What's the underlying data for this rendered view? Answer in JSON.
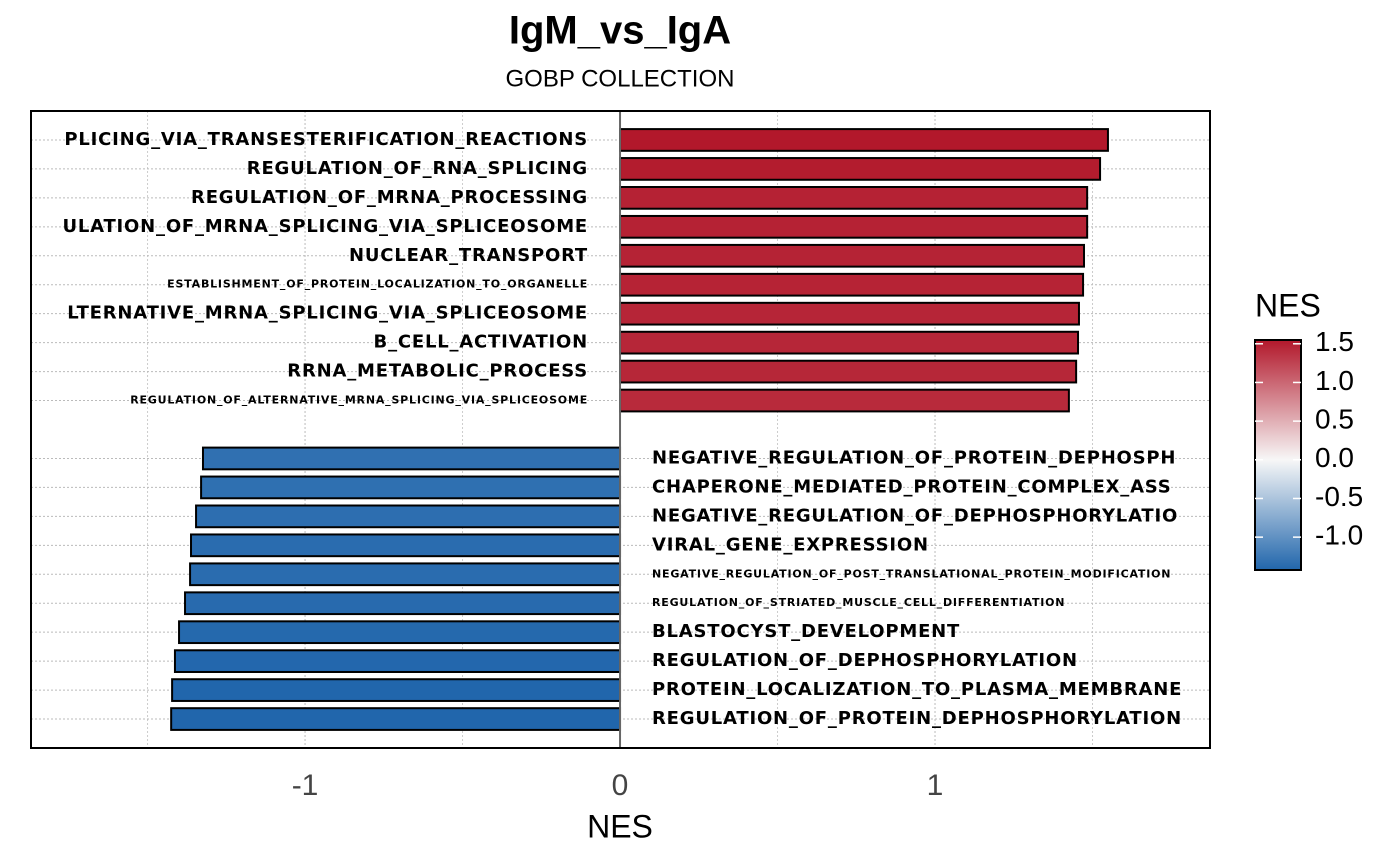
{
  "chart_data": {
    "type": "bar",
    "orientation": "horizontal",
    "title": "IgM_vs_IgA",
    "subtitle": "GOBP COLLECTION",
    "x_label": "NES",
    "categories": [
      "PLICING_VIA_TRANSESTERIFICATION_REACTIONS",
      "REGULATION_OF_RNA_SPLICING",
      "REGULATION_OF_MRNA_PROCESSING",
      "ULATION_OF_MRNA_SPLICING_VIA_SPLICEOSOME",
      "NUCLEAR_TRANSPORT",
      "ESTABLISHMENT_OF_PROTEIN_LOCALIZATION_TO_ORGANELLE",
      "LTERNATIVE_MRNA_SPLICING_VIA_SPLICEOSOME",
      "B_CELL_ACTIVATION",
      "RRNA_METABOLIC_PROCESS",
      "REGULATION_OF_ALTERNATIVE_MRNA_SPLICING_VIA_SPLICEOSOME",
      "NEGATIVE_REGULATION_OF_PROTEIN_DEPHOSPH",
      "CHAPERONE_MEDIATED_PROTEIN_COMPLEX_ASS",
      "NEGATIVE_REGULATION_OF_DEPHOSPHORYLATIO",
      "VIRAL_GENE_EXPRESSION",
      "NEGATIVE_REGULATION_OF_POST_TRANSLATIONAL_PROTEIN_MODIFICATION",
      "REGULATION_OF_STRIATED_MUSCLE_CELL_DIFFERENTIATION",
      "BLASTOCYST_DEVELOPMENT",
      "REGULATION_OF_DEPHOSPHORYLATION",
      "PROTEIN_LOCALIZATION_TO_PLASMA_MEMBRANE",
      "REGULATION_OF_PROTEIN_DEPHOSPHORYLATION"
    ],
    "values": [
      1.549,
      1.524,
      1.483,
      1.483,
      1.473,
      1.47,
      1.457,
      1.454,
      1.448,
      1.425,
      -1.324,
      -1.33,
      -1.346,
      -1.362,
      -1.365,
      -1.381,
      -1.4,
      -1.413,
      -1.422,
      -1.425
    ],
    "xlim": [
      -1.87,
      1.873
    ],
    "xticks": [
      -1,
      0,
      1
    ],
    "xminor": [
      -1.5,
      -0.5,
      0.5,
      1.5
    ],
    "grid": true,
    "colorscale": {
      "title": "NES",
      "low": "#2166ac",
      "mid": "#f7f7f7",
      "high": "#b2182b",
      "midpoint": 0,
      "limits": [
        -1.425,
        1.549
      ],
      "ticks": [
        {
          "value": 1.5,
          "label": "1.5"
        },
        {
          "value": 1,
          "label": "1.0"
        },
        {
          "value": 0.5,
          "label": "0.5"
        },
        {
          "value": 0,
          "label": "0.0"
        },
        {
          "value": -0.5,
          "label": "-0.5"
        },
        {
          "value": -1,
          "label": "-1.0"
        }
      ]
    }
  }
}
